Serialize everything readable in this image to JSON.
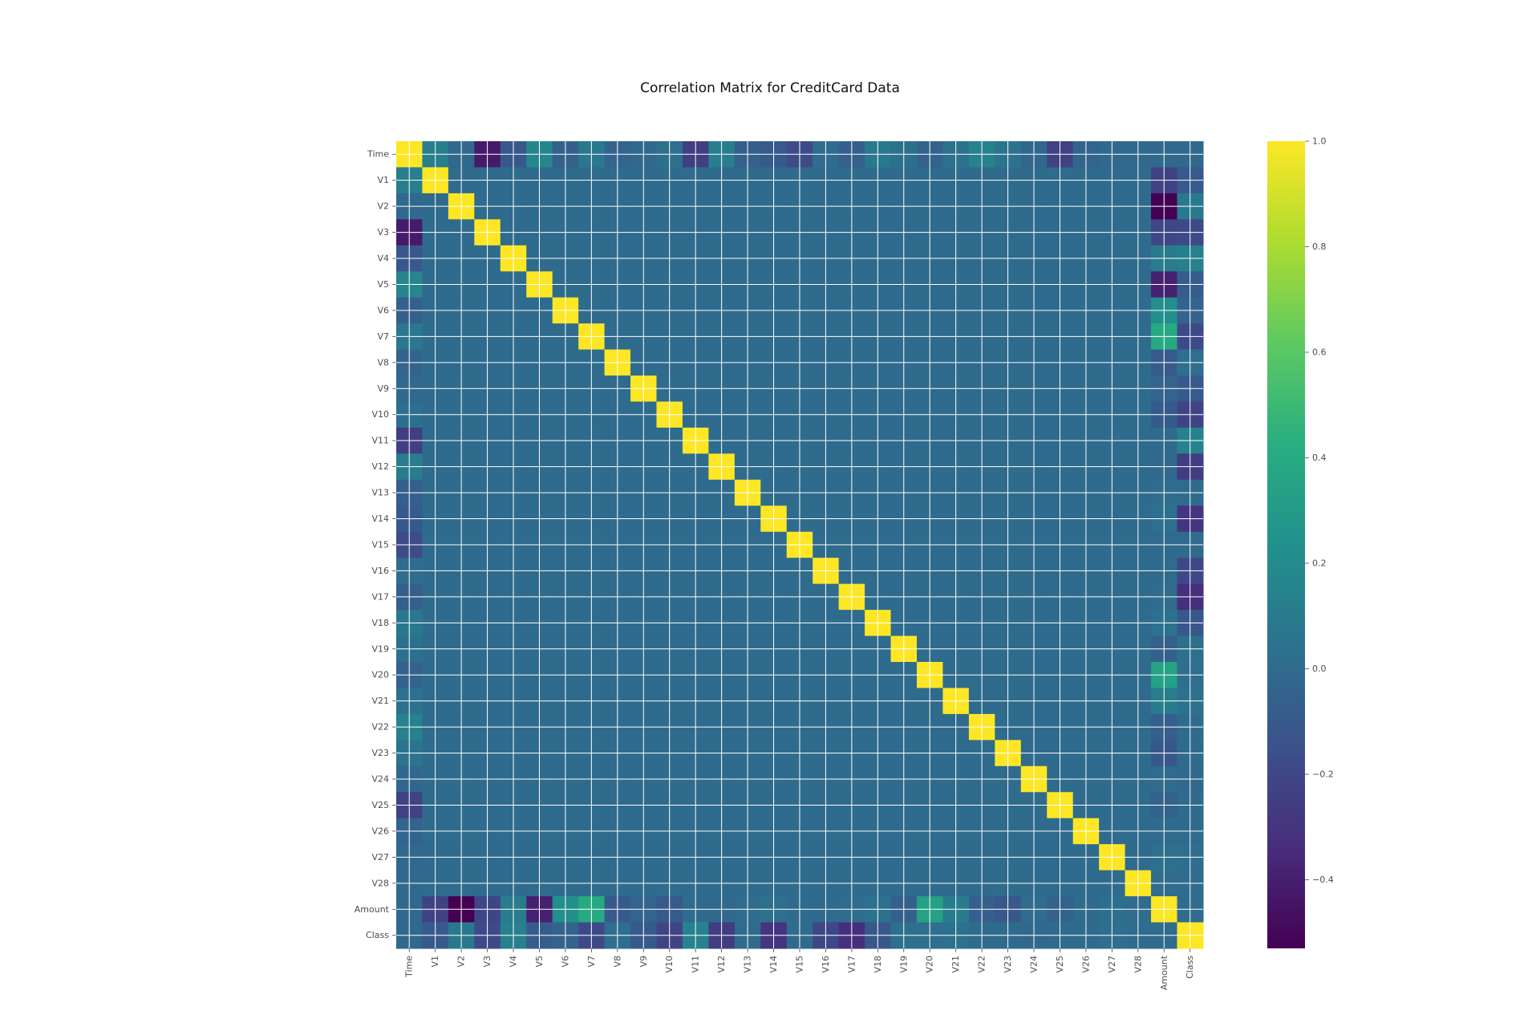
{
  "chart_data": {
    "type": "heatmap",
    "title": "Correlation Matrix for CreditCard Data",
    "xlabel": "",
    "ylabel": "",
    "colormap": "viridis",
    "grid": true,
    "labels": [
      "Time",
      "V1",
      "V2",
      "V3",
      "V4",
      "V5",
      "V6",
      "V7",
      "V8",
      "V9",
      "V10",
      "V11",
      "V12",
      "V13",
      "V14",
      "V15",
      "V16",
      "V17",
      "V18",
      "V19",
      "V20",
      "V21",
      "V22",
      "V23",
      "V24",
      "V25",
      "V26",
      "V27",
      "V28",
      "Amount",
      "Class"
    ],
    "color_range": [
      -0.53,
      1.0
    ],
    "colorbar_ticks": [
      {
        "value": 1.0,
        "label": "1.0"
      },
      {
        "value": 0.8,
        "label": "0.8"
      },
      {
        "value": 0.6,
        "label": "0.6"
      },
      {
        "value": 0.4,
        "label": "0.4"
      },
      {
        "value": 0.2,
        "label": "0.2"
      },
      {
        "value": 0.0,
        "label": "0.0"
      },
      {
        "value": -0.2,
        "label": "−0.2"
      },
      {
        "value": -0.4,
        "label": "−0.4"
      }
    ],
    "correlations_with_time": [
      1.0,
      0.12,
      -0.01,
      -0.42,
      -0.11,
      0.17,
      -0.06,
      0.08,
      -0.04,
      -0.01,
      0.03,
      -0.25,
      0.12,
      -0.07,
      -0.1,
      -0.18,
      0.01,
      -0.07,
      0.09,
      0.03,
      -0.05,
      0.04,
      0.14,
      0.05,
      -0.02,
      -0.23,
      -0.04,
      -0.01,
      -0.01,
      -0.01,
      -0.01
    ],
    "correlations_with_amount": [
      -0.01,
      -0.23,
      -0.53,
      -0.21,
      0.1,
      -0.39,
      0.22,
      0.4,
      -0.1,
      -0.04,
      -0.1,
      0.0,
      -0.01,
      0.01,
      0.03,
      -0.0,
      -0.0,
      0.01,
      0.04,
      -0.06,
      0.34,
      0.11,
      -0.07,
      -0.11,
      0.01,
      -0.05,
      -0.0,
      0.03,
      0.01,
      1.0,
      0.01
    ],
    "correlations_with_class": [
      -0.01,
      -0.1,
      0.09,
      -0.19,
      0.13,
      -0.09,
      -0.04,
      -0.19,
      0.02,
      -0.1,
      -0.22,
      0.15,
      -0.26,
      -0.0,
      -0.3,
      -0.0,
      -0.2,
      -0.33,
      -0.11,
      0.03,
      0.02,
      0.04,
      0.0,
      -0.0,
      -0.01,
      0.0,
      0.0,
      0.02,
      0.01,
      0.01,
      1.0
    ],
    "other_off_diagonal_value": 0.0,
    "diagonal_value": 1.0
  }
}
